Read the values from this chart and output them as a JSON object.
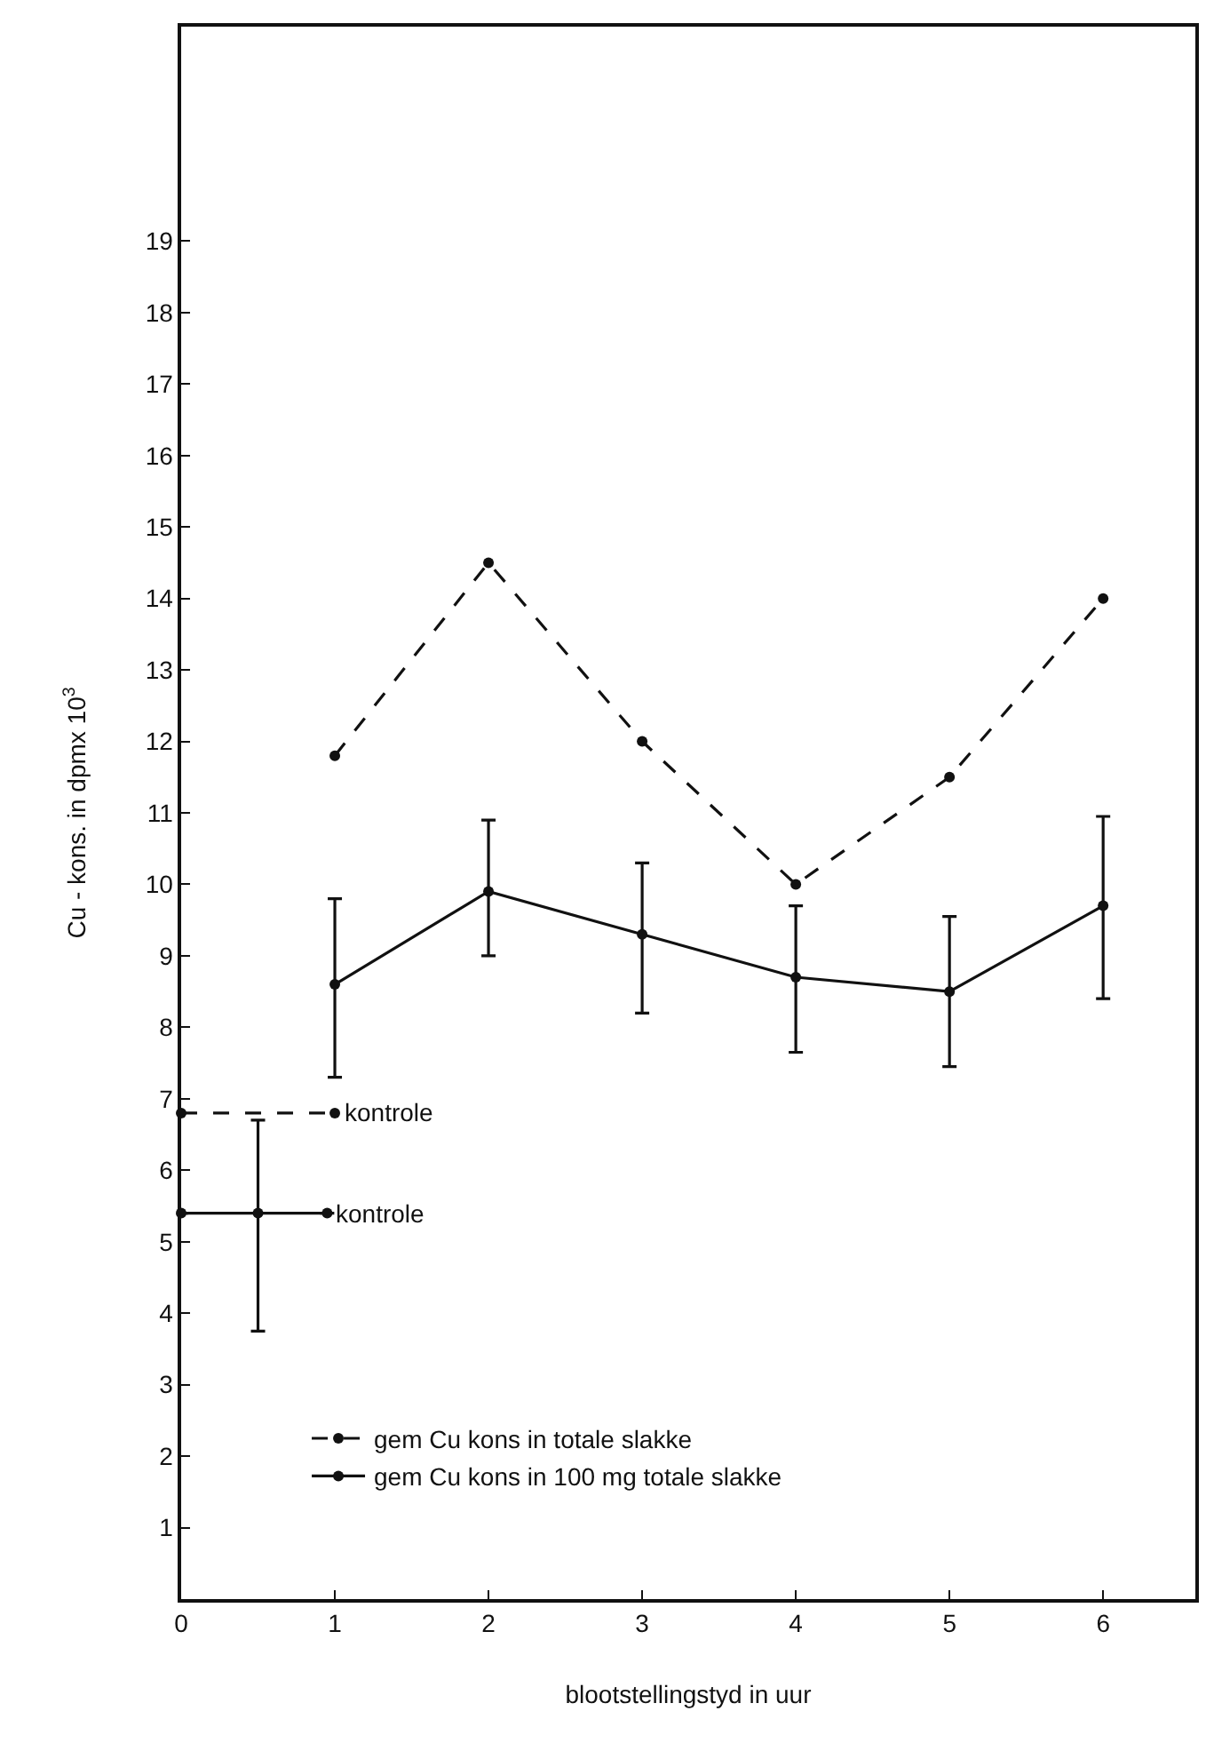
{
  "chart_data": {
    "type": "line",
    "xlabel": "blootstellingstyd in uur",
    "ylabel": "Cu - kons. in dpmx 10$^{3}$",
    "x": [
      1,
      2,
      3,
      4,
      5,
      6
    ],
    "series": [
      {
        "name": "gem Cu kons in totale slakke",
        "color": "#111111",
        "line_style": "dashed",
        "values": [
          11.8,
          14.5,
          12.0,
          10.0,
          11.5,
          14.0
        ]
      },
      {
        "name": "gem Cu kons in 100 mg totale slakke",
        "color": "#111111",
        "line_style": "solid",
        "values": [
          8.6,
          9.9,
          9.3,
          8.7,
          8.5,
          9.7
        ],
        "errors": [
          [
            7.3,
            9.8
          ],
          [
            9.0,
            10.9
          ],
          [
            8.2,
            10.3
          ],
          [
            7.65,
            9.7
          ],
          [
            7.45,
            9.55
          ],
          [
            8.4,
            10.95
          ]
        ]
      },
      {
        "name": "kontrole",
        "color": "#111111",
        "line_style": "solid",
        "x": [
          0,
          0.5,
          0.95
        ],
        "values": [
          5.4,
          5.4,
          5.4
        ],
        "errors": [
          null,
          [
            3.75,
            6.7
          ],
          null
        ]
      },
      {
        "name": "kontrole",
        "color": "#111111",
        "line_style": "dashed",
        "x": [
          0,
          1.0
        ],
        "values": [
          6.8,
          6.8
        ]
      }
    ],
    "xlim": [
      0,
      6.6
    ],
    "xticks": [
      0,
      1,
      2,
      3,
      4,
      5,
      6
    ],
    "ylim": [
      0,
      22
    ],
    "yticks": [
      1,
      2,
      3,
      4,
      5,
      6,
      7,
      8,
      9,
      10,
      11,
      12,
      13,
      14,
      15,
      16,
      17,
      18,
      19
    ],
    "marker": "circle",
    "grid": false,
    "legend": "bottom left"
  }
}
